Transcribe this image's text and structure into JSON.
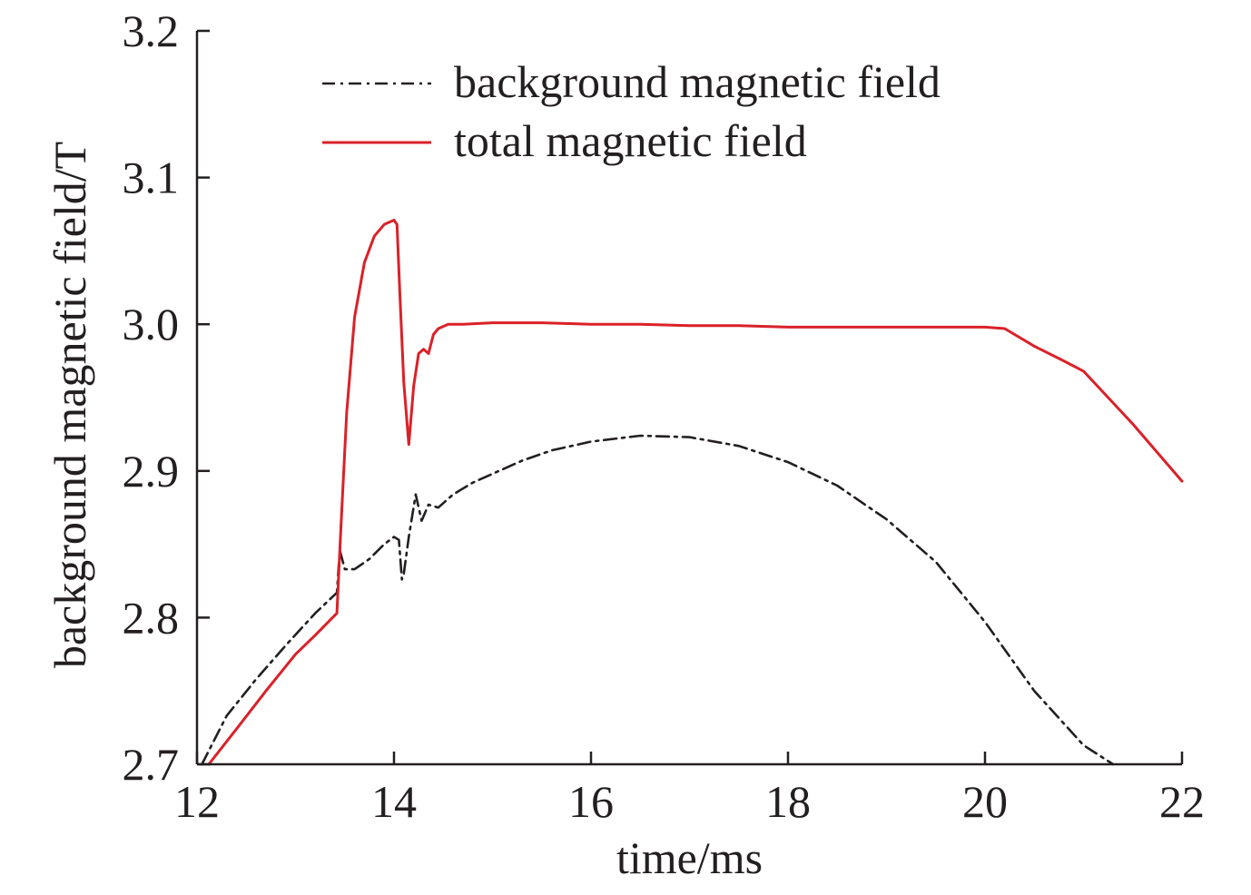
{
  "chart_data": {
    "type": "line",
    "title": "",
    "xlabel": "time/ms",
    "ylabel": "background magnetic field/T",
    "xlim": [
      12,
      22
    ],
    "ylim": [
      2.7,
      3.2
    ],
    "x_ticks": [
      12,
      14,
      16,
      18,
      20,
      22
    ],
    "x_tick_labels": [
      "12",
      "14",
      "16",
      "18",
      "20",
      "22"
    ],
    "y_ticks": [
      2.7,
      2.8,
      2.9,
      3.0,
      3.1,
      3.2
    ],
    "y_tick_labels": [
      "2.7",
      "2.8",
      "2.9",
      "3.0",
      "3.1",
      "3.2"
    ],
    "grid": false,
    "legend_position": "top-center",
    "series": [
      {
        "name": "background magnetic field",
        "color": "#231f20",
        "style": "dash-dot",
        "x": [
          12.05,
          12.3,
          12.6,
          12.9,
          13.2,
          13.42,
          13.45,
          13.5,
          13.6,
          13.75,
          13.9,
          14.0,
          14.05,
          14.08,
          14.1,
          14.15,
          14.22,
          14.28,
          14.35,
          14.45,
          14.6,
          14.8,
          15.0,
          15.3,
          15.6,
          16.0,
          16.5,
          17.0,
          17.5,
          18.0,
          18.5,
          19.0,
          19.5,
          20.0,
          20.5,
          21.0,
          21.3
        ],
        "y": [
          2.7,
          2.733,
          2.758,
          2.781,
          2.803,
          2.817,
          2.846,
          2.833,
          2.833,
          2.84,
          2.85,
          2.855,
          2.853,
          2.826,
          2.83,
          2.855,
          2.884,
          2.866,
          2.877,
          2.875,
          2.884,
          2.892,
          2.898,
          2.907,
          2.914,
          2.92,
          2.924,
          2.923,
          2.917,
          2.906,
          2.89,
          2.867,
          2.838,
          2.797,
          2.75,
          2.713,
          2.7
        ]
      },
      {
        "name": "total magnetic field",
        "color": "#da2128",
        "style": "solid",
        "x": [
          12.12,
          12.4,
          12.7,
          13.0,
          13.2,
          13.42,
          13.46,
          13.52,
          13.6,
          13.7,
          13.8,
          13.9,
          14.0,
          14.03,
          14.06,
          14.1,
          14.15,
          14.2,
          14.25,
          14.3,
          14.35,
          14.4,
          14.45,
          14.55,
          14.7,
          15.0,
          15.5,
          16.0,
          16.5,
          17.0,
          17.5,
          18.0,
          18.5,
          19.0,
          19.5,
          20.0,
          20.2,
          20.5,
          20.8,
          21.0,
          21.5,
          22.0
        ],
        "y": [
          2.7,
          2.724,
          2.75,
          2.775,
          2.788,
          2.803,
          2.86,
          2.94,
          3.005,
          3.042,
          3.06,
          3.068,
          3.071,
          3.068,
          3.02,
          2.96,
          2.918,
          2.958,
          2.98,
          2.983,
          2.98,
          2.993,
          2.997,
          3.0,
          3.0,
          3.001,
          3.001,
          3.0,
          3.0,
          2.999,
          2.999,
          2.998,
          2.998,
          2.998,
          2.998,
          2.998,
          2.997,
          2.985,
          2.975,
          2.968,
          2.932,
          2.893
        ]
      }
    ]
  }
}
